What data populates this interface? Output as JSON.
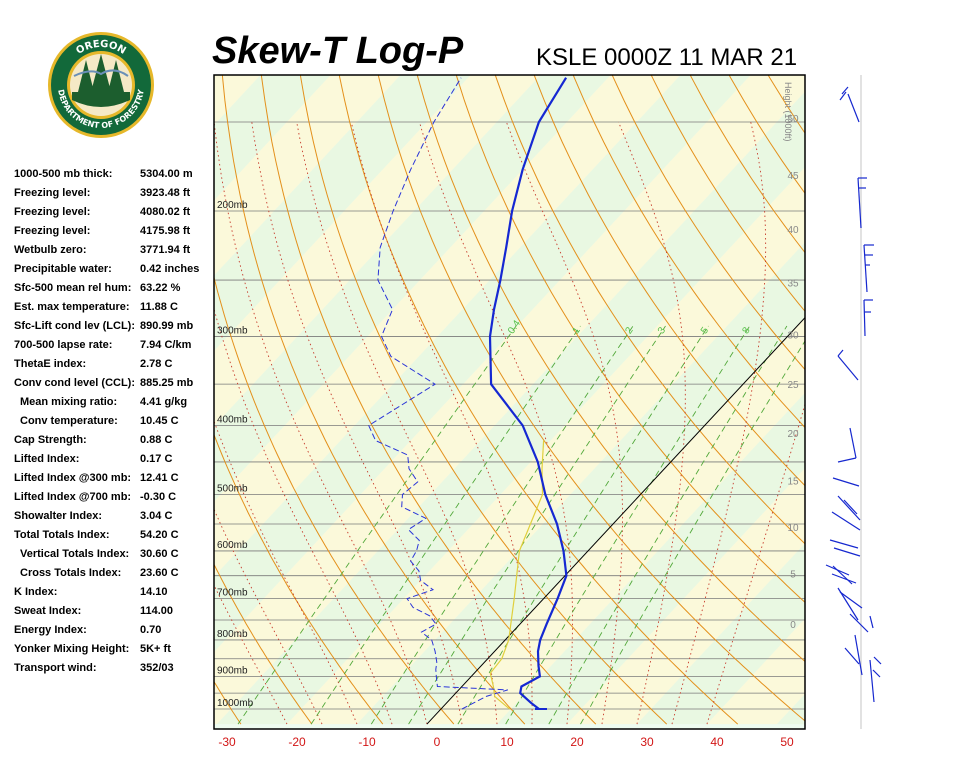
{
  "header": {
    "title": "Skew-T Log-P",
    "station": "KSLE 0000Z 11 MAR 21"
  },
  "logo": {
    "top_text": "OREGON",
    "bottom_text": "DEPARTMENT OF FORESTRY"
  },
  "indices": [
    {
      "label": "1000-500 mb thick:",
      "value": "5304.00 m",
      "indent": false
    },
    {
      "label": "Freezing level:",
      "value": "3923.48 ft",
      "indent": false
    },
    {
      "label": "Freezing level:",
      "value": "4080.02 ft",
      "indent": false
    },
    {
      "label": "Freezing level:",
      "value": "4175.98 ft",
      "indent": false
    },
    {
      "label": "Wetbulb zero:",
      "value": "3771.94 ft",
      "indent": false
    },
    {
      "label": "Precipitable water:",
      "value": "0.42 inches",
      "indent": false
    },
    {
      "label": "Sfc-500 mean rel hum:",
      "value": "63.22 %",
      "indent": false
    },
    {
      "label": "Est. max temperature:",
      "value": "11.88 C",
      "indent": false
    },
    {
      "label": "Sfc-Lift cond lev (LCL):",
      "value": "890.99 mb",
      "indent": false
    },
    {
      "label": "700-500 lapse rate:",
      "value": "7.94 C/km",
      "indent": false
    },
    {
      "label": "ThetaE index:",
      "value": "2.78 C",
      "indent": false
    },
    {
      "label": "Conv cond level (CCL):",
      "value": "885.25 mb",
      "indent": false
    },
    {
      "label": "Mean mixing ratio:",
      "value": "4.41 g/kg",
      "indent": true
    },
    {
      "label": "Conv temperature:",
      "value": "10.45 C",
      "indent": true
    },
    {
      "label": "Cap Strength:",
      "value": "0.88 C",
      "indent": false
    },
    {
      "label": "Lifted Index:",
      "value": "0.17 C",
      "indent": false
    },
    {
      "label": "Lifted Index @300 mb:",
      "value": "12.41 C",
      "indent": false
    },
    {
      "label": "Lifted Index @700 mb:",
      "value": "-0.30 C",
      "indent": false
    },
    {
      "label": "Showalter Index:",
      "value": "3.04 C",
      "indent": false
    },
    {
      "label": "Total Totals Index:",
      "value": "54.20 C",
      "indent": false
    },
    {
      "label": "Vertical Totals Index:",
      "value": "30.60 C",
      "indent": true
    },
    {
      "label": "Cross Totals Index:",
      "value": "23.60 C",
      "indent": true
    },
    {
      "label": "K Index:",
      "value": "14.10",
      "indent": false
    },
    {
      "label": "Sweat Index:",
      "value": "114.00",
      "indent": false
    },
    {
      "label": "Energy Index:",
      "value": "0.70",
      "indent": false
    },
    {
      "label": "Yonker Mixing Height:",
      "value": "5K+ ft",
      "indent": false
    },
    {
      "label": "Transport wind:",
      "value": "352/03",
      "indent": false
    }
  ],
  "chart_data": {
    "type": "line",
    "title": "Skew-T Log-P",
    "xlabel": "",
    "ylabel": "",
    "x_ticks": [
      "-30",
      "-20",
      "-10",
      "0",
      "10",
      "20",
      "30",
      "40",
      "50"
    ],
    "xlim": [
      -32,
      52
    ],
    "pressure_levels": [
      {
        "p": 200,
        "label": "200mb"
      },
      {
        "p": 300,
        "label": "300mb"
      },
      {
        "p": 400,
        "label": "400mb"
      },
      {
        "p": 500,
        "label": "500mb"
      },
      {
        "p": 600,
        "label": "600mb"
      },
      {
        "p": 700,
        "label": "700mb"
      },
      {
        "p": 800,
        "label": "800mb"
      },
      {
        "p": 900,
        "label": "900mb"
      },
      {
        "p": 1000,
        "label": "1000mb"
      }
    ],
    "height_axis_label": "Height (1000ft)",
    "height_ticks": [
      {
        "label": "50",
        "p": 148
      },
      {
        "label": "45",
        "p": 178
      },
      {
        "label": "40",
        "p": 212
      },
      {
        "label": "35",
        "p": 252
      },
      {
        "label": "30",
        "p": 298
      },
      {
        "label": "25",
        "p": 350
      },
      {
        "label": "20",
        "p": 410
      },
      {
        "label": "15",
        "p": 478
      },
      {
        "label": "10",
        "p": 555
      },
      {
        "label": "5",
        "p": 645
      },
      {
        "label": "0",
        "p": 760
      }
    ],
    "mixing_ratio_labels": [
      "0.4",
      "1",
      "2",
      "3",
      "5",
      "8"
    ],
    "temperature": [
      [
        1000,
        14.0
      ],
      [
        980,
        12.0
      ],
      [
        950,
        9.2
      ],
      [
        930,
        8.5
      ],
      [
        900,
        9.8
      ],
      [
        870,
        8.2
      ],
      [
        830,
        6.2
      ],
      [
        800,
        5.0
      ],
      [
        760,
        3.8
      ],
      [
        700,
        2.0
      ],
      [
        650,
        0.2
      ],
      [
        600,
        -3.5
      ],
      [
        550,
        -8.0
      ],
      [
        500,
        -13.6
      ],
      [
        450,
        -19.0
      ],
      [
        400,
        -26.0
      ],
      [
        350,
        -36.0
      ],
      [
        300,
        -42.5
      ],
      [
        275,
        -45.5
      ],
      [
        250,
        -48.5
      ],
      [
        225,
        -52.0
      ],
      [
        200,
        -56.0
      ],
      [
        175,
        -60.0
      ],
      [
        150,
        -64.0
      ],
      [
        130,
        -66.0
      ]
    ],
    "dewpoint": [
      [
        1000,
        3.0
      ],
      [
        960,
        4.8
      ],
      [
        940,
        7.0
      ],
      [
        930,
        -3.5
      ],
      [
        900,
        -5.0
      ],
      [
        880,
        -6.0
      ],
      [
        860,
        -6.8
      ],
      [
        830,
        -8.5
      ],
      [
        800,
        -10.5
      ],
      [
        780,
        -13.0
      ],
      [
        760,
        -12.0
      ],
      [
        740,
        -14.0
      ],
      [
        720,
        -17.5
      ],
      [
        700,
        -19.5
      ],
      [
        680,
        -17.0
      ],
      [
        660,
        -20.0
      ],
      [
        640,
        -21.5
      ],
      [
        620,
        -24.0
      ],
      [
        600,
        -24.5
      ],
      [
        580,
        -25.5
      ],
      [
        560,
        -28.5
      ],
      [
        540,
        -27.5
      ],
      [
        520,
        -32.5
      ],
      [
        500,
        -34.0
      ],
      [
        480,
        -33.5
      ],
      [
        460,
        -36.5
      ],
      [
        440,
        -38.5
      ],
      [
        420,
        -45.0
      ],
      [
        400,
        -48.0
      ],
      [
        350,
        -44.0
      ],
      [
        320,
        -54.0
      ],
      [
        300,
        -58.0
      ],
      [
        275,
        -60.0
      ],
      [
        250,
        -66.0
      ],
      [
        225,
        -70.0
      ],
      [
        200,
        -73.0
      ],
      [
        175,
        -76.0
      ],
      [
        150,
        -79.0
      ],
      [
        130,
        -81.0
      ]
    ],
    "parcel": [
      [
        1000,
        9.8
      ],
      [
        960,
        6.0
      ],
      [
        930,
        4.5
      ],
      [
        891,
        2.3
      ],
      [
        850,
        2.0
      ],
      [
        800,
        0.5
      ],
      [
        700,
        -4.2
      ],
      [
        600,
        -9.8
      ],
      [
        500,
        -14.0
      ],
      [
        460,
        -17.5
      ],
      [
        420,
        -21.0
      ]
    ]
  }
}
